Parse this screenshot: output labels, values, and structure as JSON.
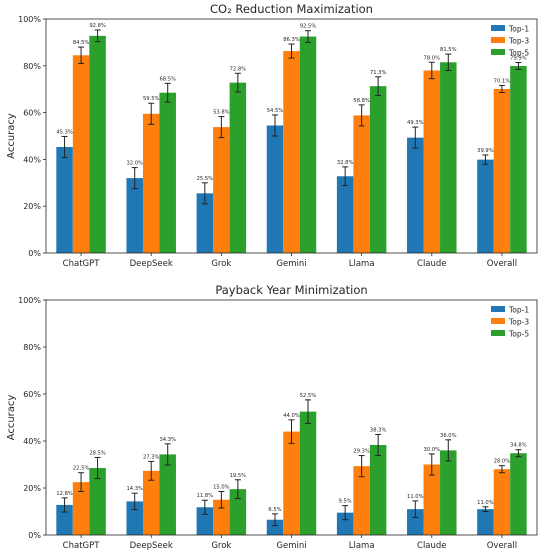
{
  "chart_data": [
    {
      "type": "bar",
      "title": "CO₂ Reduction Maximization",
      "ylabel": "Accuracy",
      "xlabel": "",
      "ylim": [
        0,
        100
      ],
      "yticks": [
        "0%",
        "20%",
        "40%",
        "60%",
        "80%",
        "100%"
      ],
      "legend_position": "top-right",
      "categories": [
        "ChatGPT",
        "DeepSeek",
        "Grok",
        "Gemini",
        "Llama",
        "Claude",
        "Overall"
      ],
      "series": [
        {
          "name": "Top-1",
          "color": "#1f77b4",
          "values": [
            45.3,
            32.0,
            25.5,
            54.5,
            32.8,
            49.3,
            39.9
          ],
          "errors": [
            4.5,
            4.5,
            4.5,
            4.5,
            4.0,
            4.5,
            2.0
          ]
        },
        {
          "name": "Top-3",
          "color": "#ff7f0e",
          "values": [
            84.5,
            59.5,
            53.8,
            86.3,
            58.8,
            78.0,
            70.1
          ],
          "errors": [
            3.5,
            4.5,
            4.5,
            3.0,
            4.5,
            3.5,
            1.5
          ]
        },
        {
          "name": "Top-5",
          "color": "#2ca02c",
          "values": [
            92.8,
            68.5,
            72.8,
            92.5,
            71.3,
            81.5,
            79.9
          ],
          "errors": [
            2.5,
            4.0,
            4.0,
            2.5,
            4.0,
            3.5,
            1.5
          ]
        }
      ],
      "labels": [
        [
          "45.3%",
          "32.0%",
          "25.5%",
          "54.5%",
          "32.8%",
          "49.3%",
          "39.9%"
        ],
        [
          "84.5%",
          "59.5%",
          "53.8%",
          "86.3%",
          "58.8%",
          "78.0%",
          "70.1%"
        ],
        [
          "92.8%",
          "68.5%",
          "72.8%",
          "92.5%",
          "71.3%",
          "81.5%",
          "79.9%"
        ]
      ]
    },
    {
      "type": "bar",
      "title": "Payback Year Minimization",
      "ylabel": "Accuracy",
      "xlabel": "",
      "ylim": [
        0,
        100
      ],
      "yticks": [
        "0%",
        "20%",
        "40%",
        "60%",
        "80%",
        "100%"
      ],
      "legend_position": "top-right",
      "categories": [
        "ChatGPT",
        "DeepSeek",
        "Grok",
        "Gemini",
        "Llama",
        "Claude",
        "Overall"
      ],
      "series": [
        {
          "name": "Top-1",
          "color": "#1f77b4",
          "values": [
            12.8,
            14.3,
            11.8,
            6.5,
            9.5,
            11.0,
            11.0
          ],
          "errors": [
            3.0,
            3.5,
            3.0,
            2.5,
            3.0,
            3.5,
            1.0
          ]
        },
        {
          "name": "Top-3",
          "color": "#ff7f0e",
          "values": [
            22.5,
            27.3,
            15.0,
            44.0,
            29.3,
            30.0,
            28.0
          ],
          "errors": [
            4.0,
            4.0,
            3.5,
            5.0,
            4.5,
            4.5,
            1.5
          ]
        },
        {
          "name": "Top-5",
          "color": "#2ca02c",
          "values": [
            28.5,
            34.3,
            19.5,
            52.5,
            38.3,
            36.0,
            34.8
          ],
          "errors": [
            4.5,
            4.5,
            4.0,
            5.0,
            4.5,
            4.5,
            1.5
          ]
        }
      ],
      "labels": [
        [
          "12.8%",
          "14.3%",
          "11.8%",
          "6.5%",
          "9.5%",
          "11.0%",
          "11.0%"
        ],
        [
          "22.5%",
          "27.3%",
          "15.0%",
          "44.0%",
          "29.3%",
          "30.0%",
          "28.0%"
        ],
        [
          "28.5%",
          "34.3%",
          "19.5%",
          "52.5%",
          "38.3%",
          "36.0%",
          "34.8%"
        ]
      ]
    }
  ]
}
